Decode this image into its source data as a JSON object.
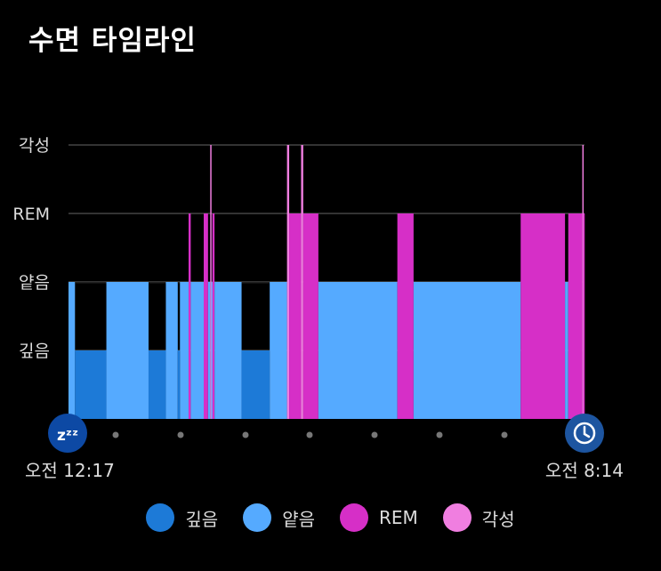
{
  "header": {
    "title": "수면 타임라인"
  },
  "colors": {
    "deep": "#1d7ad7",
    "light": "#55aaff",
    "rem": "#d62fc7",
    "awake": "#f07ee0",
    "grid": "#666666",
    "start_marker": "#0d49a4",
    "end_marker": "#1d55a0"
  },
  "icons": {
    "start": "zzz-icon",
    "end": "clock-icon"
  },
  "chart_data": {
    "type": "area",
    "title": "수면 타임라인",
    "stages": [
      "깊음",
      "얕음",
      "REM",
      "각성"
    ],
    "x_start_label": "오전 12:17",
    "x_end_label": "오전 8:14",
    "x_start_minutes": 0,
    "x_end_minutes": 477,
    "segments": [
      {
        "start": 0,
        "end": 6,
        "stage": "얕음"
      },
      {
        "start": 6,
        "end": 35,
        "stage": "깊음"
      },
      {
        "start": 35,
        "end": 74,
        "stage": "얕음"
      },
      {
        "start": 74,
        "end": 90,
        "stage": "깊음"
      },
      {
        "start": 90,
        "end": 101,
        "stage": "얕음"
      },
      {
        "start": 101,
        "end": 103,
        "stage": "깊음"
      },
      {
        "start": 103,
        "end": 111,
        "stage": "얕음"
      },
      {
        "start": 111,
        "end": 113,
        "stage": "REM"
      },
      {
        "start": 113,
        "end": 125,
        "stage": "얕음"
      },
      {
        "start": 125,
        "end": 129,
        "stage": "REM"
      },
      {
        "start": 129,
        "end": 131,
        "stage": "얕음"
      },
      {
        "start": 131,
        "end": 132,
        "stage": "각성"
      },
      {
        "start": 132,
        "end": 133,
        "stage": "얕음"
      },
      {
        "start": 133,
        "end": 135,
        "stage": "REM"
      },
      {
        "start": 135,
        "end": 160,
        "stage": "얕음"
      },
      {
        "start": 160,
        "end": 186,
        "stage": "깊음"
      },
      {
        "start": 186,
        "end": 202,
        "stage": "얕음"
      },
      {
        "start": 202,
        "end": 204,
        "stage": "각성"
      },
      {
        "start": 204,
        "end": 215,
        "stage": "REM"
      },
      {
        "start": 215,
        "end": 217,
        "stage": "각성"
      },
      {
        "start": 217,
        "end": 231,
        "stage": "REM"
      },
      {
        "start": 231,
        "end": 304,
        "stage": "얕음"
      },
      {
        "start": 304,
        "end": 319,
        "stage": "REM"
      },
      {
        "start": 319,
        "end": 418,
        "stage": "얕음"
      },
      {
        "start": 418,
        "end": 459,
        "stage": "REM"
      },
      {
        "start": 459,
        "end": 462,
        "stage": "얕음"
      },
      {
        "start": 462,
        "end": 475,
        "stage": "REM"
      },
      {
        "start": 475,
        "end": 476,
        "stage": "각성"
      },
      {
        "start": 476,
        "end": 477,
        "stage": "REM"
      }
    ],
    "legend": [
      {
        "label": "깊음",
        "stage": "깊음"
      },
      {
        "label": "얕음",
        "stage": "얕음"
      },
      {
        "label": "REM",
        "stage": "REM"
      },
      {
        "label": "각성",
        "stage": "각성"
      }
    ],
    "grid": true,
    "legend_position": "bottom"
  }
}
